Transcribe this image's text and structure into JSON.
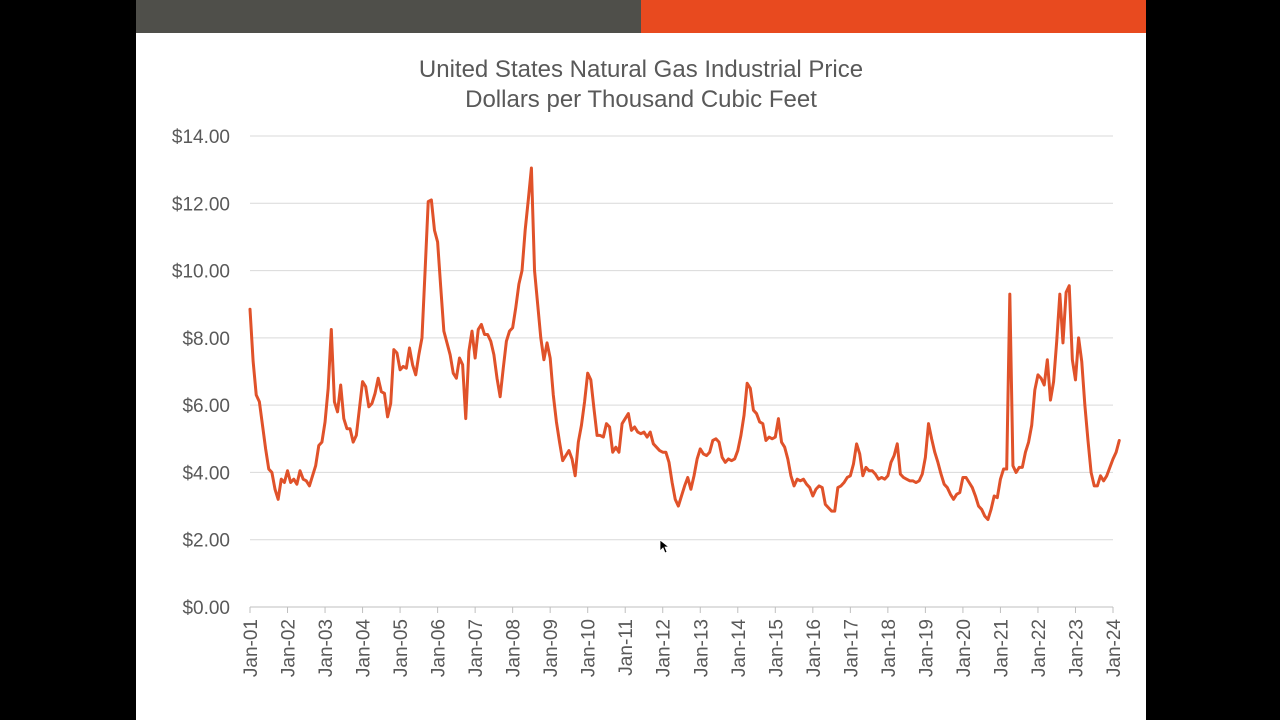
{
  "colors": {
    "header_left": "#4f4f4a",
    "header_right": "#e84a1f",
    "series": "#e0522a",
    "grid": "#d9d9d9",
    "axis": "#bfbfbf",
    "text": "#595959"
  },
  "chart_data": {
    "type": "line",
    "title": "United States Natural Gas Industrial Price",
    "subtitle": "Dollars per Thousand Cubic Feet",
    "xlabel": "",
    "ylabel": "",
    "ylim": [
      0,
      14
    ],
    "grid": true,
    "legend": "none",
    "y_ticks": [
      0,
      2,
      4,
      6,
      8,
      10,
      12,
      14
    ],
    "y_tick_labels": [
      "$0.00",
      "$2.00",
      "$4.00",
      "$6.00",
      "$8.00",
      "$10.00",
      "$12.00",
      "$14.00"
    ],
    "x_tick_labels": [
      "Jan-01",
      "Jan-02",
      "Jan-03",
      "Jan-04",
      "Jan-05",
      "Jan-06",
      "Jan-07",
      "Jan-08",
      "Jan-09",
      "Jan-10",
      "Jan-11",
      "Jan-12",
      "Jan-13",
      "Jan-14",
      "Jan-15",
      "Jan-16",
      "Jan-17",
      "Jan-18",
      "Jan-19",
      "Jan-20",
      "Jan-21",
      "Jan-22",
      "Jan-23",
      "Jan-24"
    ],
    "x_start": "Jan-01",
    "x_unit": "months",
    "series": [
      {
        "name": "Industrial Price",
        "values": [
          8.85,
          7.3,
          6.3,
          6.1,
          5.4,
          4.7,
          4.1,
          4.0,
          3.5,
          3.2,
          3.8,
          3.7,
          4.05,
          3.7,
          3.8,
          3.65,
          4.05,
          3.8,
          3.75,
          3.6,
          3.9,
          4.2,
          4.8,
          4.9,
          5.5,
          6.5,
          8.25,
          6.1,
          5.8,
          6.6,
          5.6,
          5.3,
          5.3,
          4.9,
          5.1,
          5.9,
          6.7,
          6.55,
          5.95,
          6.05,
          6.35,
          6.8,
          6.4,
          6.35,
          5.65,
          6.05,
          7.65,
          7.55,
          7.05,
          7.15,
          7.1,
          7.7,
          7.2,
          6.9,
          7.5,
          8.0,
          10.0,
          12.05,
          12.1,
          11.2,
          10.85,
          9.5,
          8.2,
          7.85,
          7.5,
          6.95,
          6.8,
          7.4,
          7.2,
          5.6,
          7.6,
          8.2,
          7.4,
          8.25,
          8.4,
          8.1,
          8.1,
          7.9,
          7.5,
          6.8,
          6.25,
          7.1,
          7.9,
          8.2,
          8.3,
          8.9,
          9.6,
          10.0,
          11.2,
          12.1,
          13.05,
          10.0,
          9.0,
          8.0,
          7.35,
          7.85,
          7.4,
          6.3,
          5.5,
          4.9,
          4.35,
          4.5,
          4.65,
          4.4,
          3.9,
          4.9,
          5.4,
          6.1,
          6.95,
          6.75,
          5.9,
          5.1,
          5.1,
          5.05,
          5.45,
          5.35,
          4.6,
          4.75,
          4.6,
          5.45,
          5.6,
          5.75,
          5.25,
          5.35,
          5.2,
          5.15,
          5.2,
          5.05,
          5.2,
          4.85,
          4.75,
          4.65,
          4.6,
          4.6,
          4.3,
          3.7,
          3.2,
          3.0,
          3.3,
          3.6,
          3.85,
          3.5,
          3.9,
          4.4,
          4.7,
          4.55,
          4.5,
          4.6,
          4.95,
          5.0,
          4.9,
          4.45,
          4.3,
          4.4,
          4.35,
          4.4,
          4.65,
          5.1,
          5.7,
          6.65,
          6.5,
          5.85,
          5.75,
          5.5,
          5.45,
          4.95,
          5.05,
          5.0,
          5.05,
          5.6,
          4.9,
          4.75,
          4.4,
          3.9,
          3.6,
          3.8,
          3.75,
          3.8,
          3.65,
          3.55,
          3.3,
          3.5,
          3.6,
          3.55,
          3.05,
          2.95,
          2.85,
          2.85,
          3.55,
          3.6,
          3.7,
          3.85,
          3.9,
          4.25,
          4.85,
          4.55,
          3.9,
          4.15,
          4.05,
          4.05,
          3.95,
          3.8,
          3.85,
          3.8,
          3.9,
          4.3,
          4.5,
          4.85,
          3.95,
          3.85,
          3.8,
          3.75,
          3.75,
          3.7,
          3.75,
          3.95,
          4.45,
          5.45,
          5.0,
          4.6,
          4.3,
          3.95,
          3.65,
          3.55,
          3.35,
          3.2,
          3.35,
          3.4,
          3.85,
          3.85,
          3.7,
          3.55,
          3.3,
          3.0,
          2.9,
          2.7,
          2.6,
          2.9,
          3.3,
          3.25,
          3.8,
          4.1,
          4.1,
          9.3,
          4.2,
          4.0,
          4.15,
          4.15,
          4.6,
          4.9,
          5.4,
          6.45,
          6.9,
          6.8,
          6.6,
          7.35,
          6.15,
          6.7,
          7.9,
          9.3,
          7.85,
          9.35,
          9.55,
          7.35,
          6.75,
          8.0,
          7.3,
          6.0,
          4.95,
          4.0,
          3.6,
          3.6,
          3.9,
          3.75,
          3.9,
          4.15,
          4.4,
          4.6,
          4.95
        ]
      }
    ]
  }
}
